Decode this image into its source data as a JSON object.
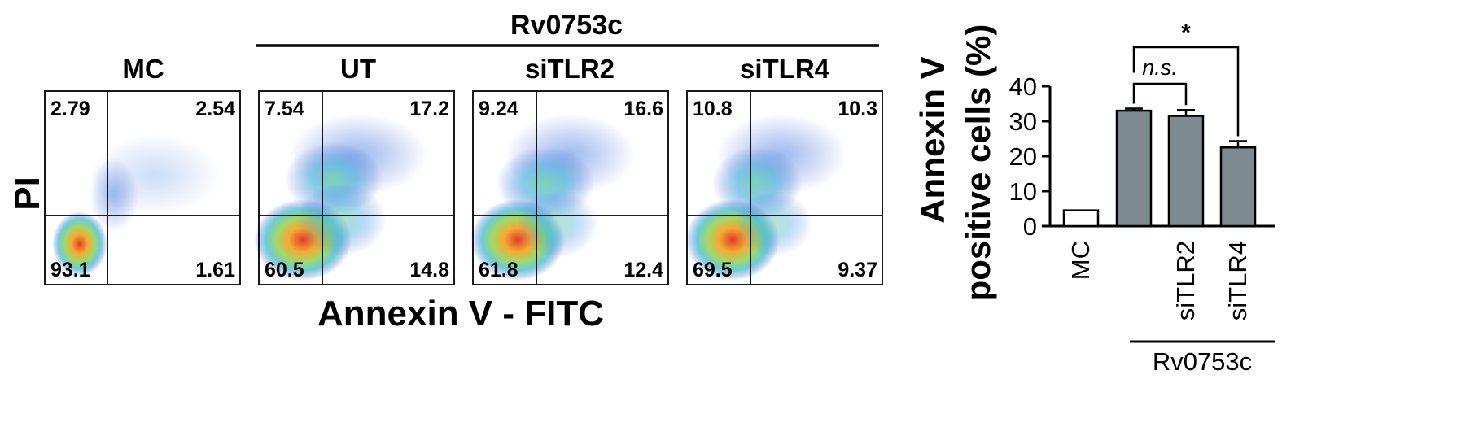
{
  "flow": {
    "group_label": "Rv0753c",
    "x_axis_label": "Annexin V - FITC",
    "y_axis_label": "PI",
    "panels": [
      {
        "title": "MC",
        "q_ul": "2.79",
        "q_ur": "2.54",
        "q_ll": "93.1",
        "q_lr": "1.61"
      },
      {
        "title": "UT",
        "q_ul": "7.54",
        "q_ur": "17.2",
        "q_ll": "60.5",
        "q_lr": "14.8"
      },
      {
        "title": "siTLR2",
        "q_ul": "9.24",
        "q_ur": "16.6",
        "q_ll": "61.8",
        "q_lr": "12.4"
      },
      {
        "title": "siTLR4",
        "q_ul": "10.8",
        "q_ur": "10.3",
        "q_ll": "69.5",
        "q_lr": "9.37"
      }
    ]
  },
  "chart_data": {
    "type": "bar",
    "title": "",
    "ylabel_line1": "Annexin V",
    "ylabel_line2": "positive cells (%)",
    "xlabel": "",
    "ylim": [
      0,
      40
    ],
    "yticks": [
      "0",
      "10",
      "20",
      "30",
      "40"
    ],
    "categories": [
      "MC",
      "",
      "siTLR2",
      "siTLR4"
    ],
    "values": [
      4.5,
      33,
      31.5,
      22.5
    ],
    "errors": [
      0,
      0.6,
      1.7,
      1.8
    ],
    "bar_colors": [
      "#ffffff",
      "#7d8b8e",
      "#7d8b8e",
      "#7d8b8e"
    ],
    "group_label": "Rv0753c",
    "annotations": [
      {
        "label": "n.s.",
        "from": 1,
        "to": 2
      },
      {
        "label": "*",
        "from": 1,
        "to": 3
      }
    ]
  }
}
